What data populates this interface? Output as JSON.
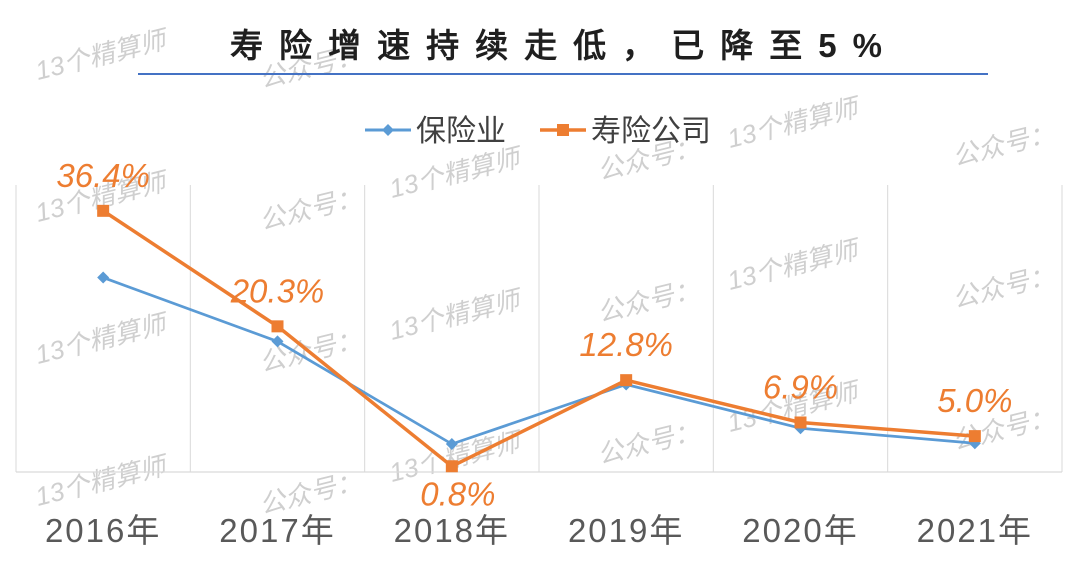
{
  "colors": {
    "title_text": "#1F1F1F",
    "title_rule": "#4472C4",
    "legend_text": "#404040",
    "tick_text": "#595959",
    "gridline": "#D9D9D9",
    "watermark": "#CFCFCF"
  },
  "watermark": [
    "公众号：",
    "13个精算师"
  ],
  "chart_data": {
    "type": "line",
    "title": "寿险增速持续走低，已降至5%",
    "categories": [
      "2016年",
      "2017年",
      "2018年",
      "2019年",
      "2020年",
      "2021年"
    ],
    "series": [
      {
        "name": "保险业",
        "color": "#5B9BD5",
        "marker": "diamond",
        "values": [
          27.1,
          18.2,
          3.9,
          12.2,
          6.1,
          4.0
        ]
      },
      {
        "name": "寿险公司",
        "color": "#ED7D31",
        "marker": "square",
        "values": [
          36.4,
          20.3,
          0.8,
          12.8,
          6.9,
          5.0
        ],
        "data_labels": [
          "36.4%",
          "20.3%",
          "0.8%",
          "12.8%",
          "6.9%",
          "5.0%"
        ]
      }
    ],
    "ylim": [
      0,
      40
    ],
    "y_axis_visible": false,
    "legend": "top-center",
    "grid": "vertical"
  }
}
